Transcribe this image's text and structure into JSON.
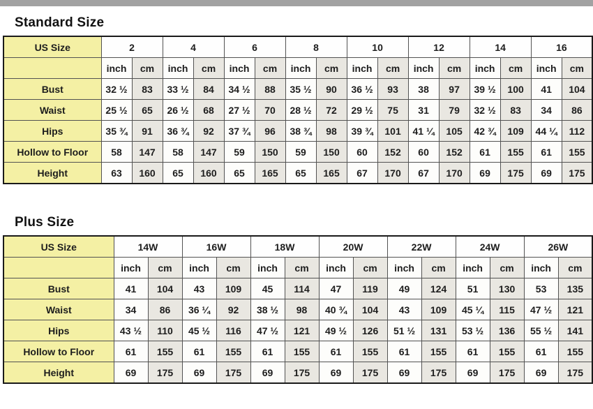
{
  "colors": {
    "label_bg": "#f4f0a4",
    "cm_cell_bg": "#e9e7e1",
    "inch_cell_bg": "#fdfdfb",
    "grid_border": "#525252",
    "top_strip": "#a2a2a2"
  },
  "tables": [
    {
      "title": "Standard Size",
      "corner_label": "US Size",
      "units": [
        "inch",
        "cm"
      ],
      "sizes": [
        "2",
        "4",
        "6",
        "8",
        "10",
        "12",
        "14",
        "16"
      ],
      "rows": [
        {
          "label": "Bust",
          "values": [
            [
              "32 ½",
              "83"
            ],
            [
              "33 ½",
              "84"
            ],
            [
              "34 ½",
              "88"
            ],
            [
              "35 ½",
              "90"
            ],
            [
              "36 ½",
              "93"
            ],
            [
              "38",
              "97"
            ],
            [
              "39 ½",
              "100"
            ],
            [
              "41",
              "104"
            ]
          ]
        },
        {
          "label": "Waist",
          "values": [
            [
              "25 ½",
              "65"
            ],
            [
              "26 ½",
              "68"
            ],
            [
              "27 ½",
              "70"
            ],
            [
              "28 ½",
              "72"
            ],
            [
              "29 ½",
              "75"
            ],
            [
              "31",
              "79"
            ],
            [
              "32 ½",
              "83"
            ],
            [
              "34",
              "86"
            ]
          ]
        },
        {
          "label": "Hips",
          "values": [
            [
              "35 ¾",
              "91"
            ],
            [
              "36 ¾",
              "92"
            ],
            [
              "37 ¾",
              "96"
            ],
            [
              "38 ¾",
              "98"
            ],
            [
              "39 ¾",
              "101"
            ],
            [
              "41 ¼",
              "105"
            ],
            [
              "42 ¾",
              "109"
            ],
            [
              "44 ¼",
              "112"
            ]
          ]
        },
        {
          "label": "Hollow to Floor",
          "values": [
            [
              "58",
              "147"
            ],
            [
              "58",
              "147"
            ],
            [
              "59",
              "150"
            ],
            [
              "59",
              "150"
            ],
            [
              "60",
              "152"
            ],
            [
              "60",
              "152"
            ],
            [
              "61",
              "155"
            ],
            [
              "61",
              "155"
            ]
          ]
        },
        {
          "label": "Height",
          "values": [
            [
              "63",
              "160"
            ],
            [
              "65",
              "160"
            ],
            [
              "65",
              "165"
            ],
            [
              "65",
              "165"
            ],
            [
              "67",
              "170"
            ],
            [
              "67",
              "170"
            ],
            [
              "69",
              "175"
            ],
            [
              "69",
              "175"
            ]
          ]
        }
      ]
    },
    {
      "title": "Plus Size",
      "corner_label": "US Size",
      "units": [
        "inch",
        "cm"
      ],
      "sizes": [
        "14W",
        "16W",
        "18W",
        "20W",
        "22W",
        "24W",
        "26W"
      ],
      "rows": [
        {
          "label": "Bust",
          "values": [
            [
              "41",
              "104"
            ],
            [
              "43",
              "109"
            ],
            [
              "45",
              "114"
            ],
            [
              "47",
              "119"
            ],
            [
              "49",
              "124"
            ],
            [
              "51",
              "130"
            ],
            [
              "53",
              "135"
            ]
          ]
        },
        {
          "label": "Waist",
          "values": [
            [
              "34",
              "86"
            ],
            [
              "36 ¼",
              "92"
            ],
            [
              "38 ½",
              "98"
            ],
            [
              "40 ¾",
              "104"
            ],
            [
              "43",
              "109"
            ],
            [
              "45 ¼",
              "115"
            ],
            [
              "47 ½",
              "121"
            ]
          ]
        },
        {
          "label": "Hips",
          "values": [
            [
              "43 ½",
              "110"
            ],
            [
              "45 ½",
              "116"
            ],
            [
              "47 ½",
              "121"
            ],
            [
              "49 ½",
              "126"
            ],
            [
              "51 ½",
              "131"
            ],
            [
              "53 ½",
              "136"
            ],
            [
              "55 ½",
              "141"
            ]
          ]
        },
        {
          "label": "Hollow to Floor",
          "values": [
            [
              "61",
              "155"
            ],
            [
              "61",
              "155"
            ],
            [
              "61",
              "155"
            ],
            [
              "61",
              "155"
            ],
            [
              "61",
              "155"
            ],
            [
              "61",
              "155"
            ],
            [
              "61",
              "155"
            ]
          ]
        },
        {
          "label": "Height",
          "values": [
            [
              "69",
              "175"
            ],
            [
              "69",
              "175"
            ],
            [
              "69",
              "175"
            ],
            [
              "69",
              "175"
            ],
            [
              "69",
              "175"
            ],
            [
              "69",
              "175"
            ],
            [
              "69",
              "175"
            ]
          ]
        }
      ]
    }
  ]
}
